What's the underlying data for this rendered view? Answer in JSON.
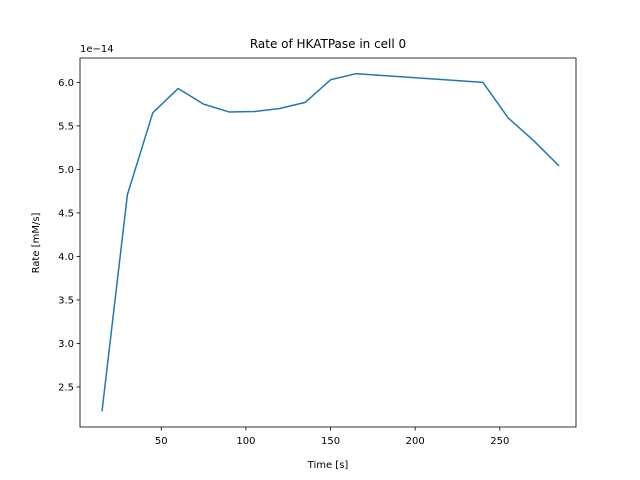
{
  "chart_data": {
    "type": "line",
    "title": "Rate of HKATPase in cell 0",
    "xlabel": "Time [s]",
    "ylabel": "Rate [mM/s]",
    "y_offset_label": "1e−14",
    "xlim": [
      2,
      295
    ],
    "ylim": [
      2.04,
      6.28
    ],
    "xticks": [
      50,
      100,
      150,
      200,
      250
    ],
    "xtick_labels": [
      "50",
      "100",
      "150",
      "200",
      "250"
    ],
    "yticks": [
      2.5,
      3.0,
      3.5,
      4.0,
      4.5,
      5.0,
      5.5,
      6.0
    ],
    "ytick_labels": [
      "2.5",
      "3.0",
      "3.5",
      "4.0",
      "4.5",
      "5.0",
      "5.5",
      "6.0"
    ],
    "grid": false,
    "series": [
      {
        "color": "#1f77b4",
        "x": [
          15,
          30,
          45,
          60,
          75,
          90,
          105,
          120,
          135,
          150,
          165,
          240,
          255,
          270,
          285
        ],
        "y": [
          2.22,
          4.71,
          5.65,
          5.93,
          5.75,
          5.66,
          5.665,
          5.7,
          5.77,
          6.03,
          6.1,
          6.0,
          5.59,
          5.33,
          5.04
        ]
      }
    ]
  }
}
